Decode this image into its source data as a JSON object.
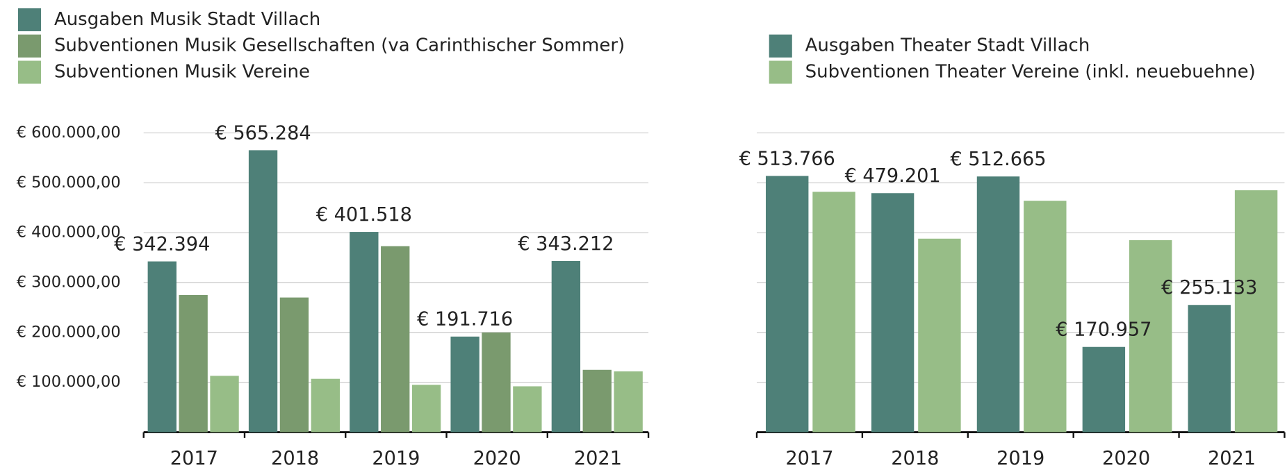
{
  "chart_data": [
    {
      "type": "bar",
      "categories": [
        "2017",
        "2018",
        "2019",
        "2020",
        "2021"
      ],
      "series": [
        {
          "name": "Ausgaben Musik Stadt Villach",
          "color": "#4e8078",
          "values": [
            342394,
            565284,
            401518,
            191716,
            343212
          ],
          "value_labels": [
            "€ 342.394",
            "€ 565.284",
            "€ 401.518",
            "€ 191.716",
            "€ 343.212"
          ]
        },
        {
          "name": "Subventionen Musik Gesellschaften (va Carinthischer Sommer)",
          "color": "#7a9a6e",
          "values": [
            275000,
            270000,
            373000,
            200000,
            125000
          ]
        },
        {
          "name": "Subventionen Musik Vereine",
          "color": "#97bd87",
          "values": [
            113000,
            107000,
            95000,
            92000,
            122000
          ]
        }
      ],
      "ylim": [
        0,
        600000
      ],
      "yticks": [
        {
          "value": 100000,
          "label": "€ 100.000,00"
        },
        {
          "value": 200000,
          "label": "€ 200.000,00"
        },
        {
          "value": 300000,
          "label": "€ 300.000,00"
        },
        {
          "value": 400000,
          "label": "€ 400.000,00"
        },
        {
          "value": 500000,
          "label": "€ 500.000,00"
        },
        {
          "value": 600000,
          "label": "€ 600.000,00"
        }
      ],
      "grid": true,
      "show_ytick_labels": true
    },
    {
      "type": "bar",
      "categories": [
        "2017",
        "2018",
        "2019",
        "2020",
        "2021"
      ],
      "series": [
        {
          "name": "Ausgaben Theater Stadt Villach",
          "color": "#4e8078",
          "values": [
            513766,
            479201,
            512665,
            170957,
            255133
          ],
          "value_labels": [
            "€ 513.766",
            "€ 479.201",
            "€ 512.665",
            "€ 170.957",
            "€ 255.133"
          ]
        },
        {
          "name": "Subventionen Theater Vereine (inkl. neuebuehne)",
          "color": "#97bd87",
          "values": [
            482000,
            388000,
            464000,
            385000,
            485000
          ]
        }
      ],
      "ylim": [
        0,
        600000
      ],
      "yticks": [
        100000,
        200000,
        300000,
        400000,
        500000,
        600000
      ],
      "grid": true,
      "show_ytick_labels": false
    }
  ]
}
